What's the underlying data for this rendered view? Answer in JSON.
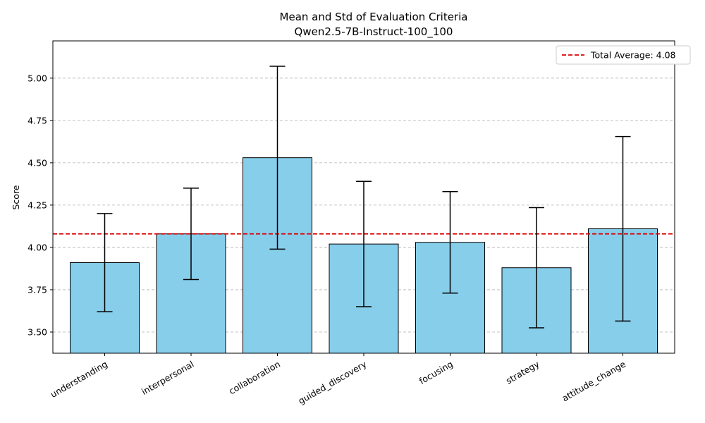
{
  "chart_data": {
    "type": "bar",
    "title": "Mean and Std of Evaluation Criteria",
    "subtitle": "Qwen2.5-7B-Instruct-100_100",
    "xlabel": "",
    "ylabel": "Score",
    "categories": [
      "understanding",
      "interpersonal",
      "collaboration",
      "guided_discovery",
      "focusing",
      "strategy",
      "attitude_change"
    ],
    "values": [
      3.91,
      4.08,
      4.53,
      4.02,
      4.03,
      3.88,
      4.11
    ],
    "errors": [
      0.29,
      0.27,
      0.54,
      0.37,
      0.3,
      0.355,
      0.545
    ],
    "ylim": [
      3.375,
      5.22
    ],
    "yticks": [
      "3.50",
      "3.75",
      "4.00",
      "4.25",
      "4.50",
      "4.75",
      "5.00"
    ],
    "reference_line": {
      "value": 4.08,
      "label": "Total Average: 4.08",
      "color": "#dd0000"
    },
    "bar_color": "#87ceeb",
    "grid": "y-dashed",
    "legend_position": "top-right",
    "x_tick_rotation": -30
  }
}
